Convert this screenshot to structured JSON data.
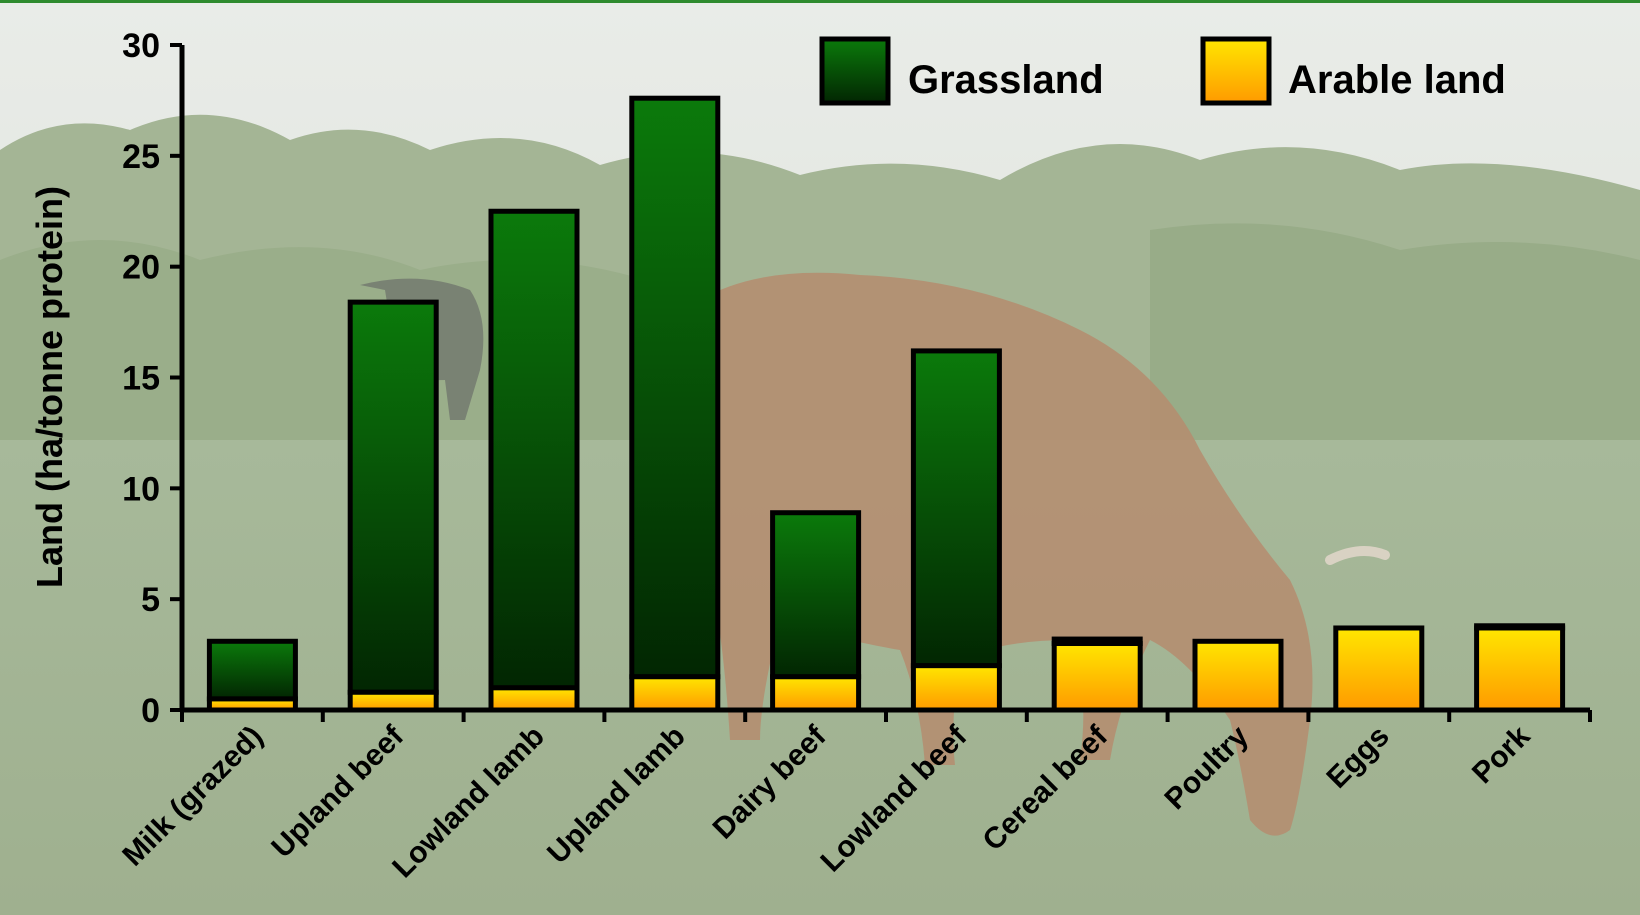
{
  "chart_data": {
    "type": "bar",
    "stacked": true,
    "categories": [
      "Milk (grazed)",
      "Upland beef",
      "Lowland lamb",
      "Upland lamb",
      "Dairy beef",
      "Lowland beef",
      "Cereal beef",
      "Poultry",
      "Eggs",
      "Pork"
    ],
    "series": [
      {
        "name": "Arable land",
        "values": [
          0.5,
          0.8,
          1.0,
          1.5,
          1.5,
          2.0,
          3.0,
          3.1,
          3.7,
          3.7
        ],
        "color": "#f7b500"
      },
      {
        "name": "Grassland",
        "values": [
          2.6,
          17.6,
          21.5,
          26.1,
          7.4,
          14.2,
          0.2,
          0.0,
          0.0,
          0.1
        ],
        "color": "#0a6e0a"
      }
    ],
    "ylabel": "Land (ha/tonne protein)",
    "ylim": [
      0,
      30
    ],
    "yticks": [
      0,
      5,
      10,
      15,
      20,
      25,
      30
    ],
    "legend_position": "top-right",
    "grid": false
  }
}
